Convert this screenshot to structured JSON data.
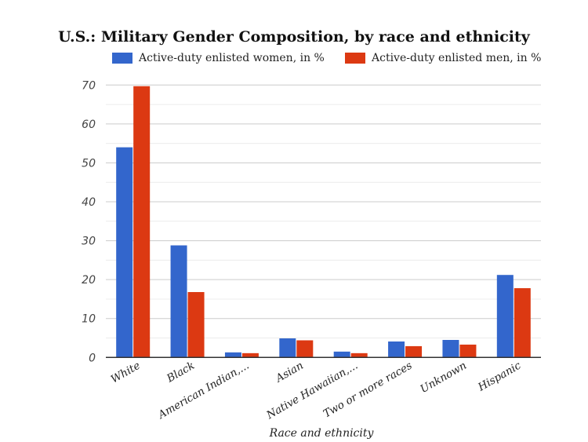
{
  "chart_data": {
    "type": "bar",
    "title": "U.S.: Military Gender Composition, by race and ethnicity",
    "xlabel": "Race and ethnicity",
    "ylabel": "",
    "ylim": [
      0,
      70
    ],
    "yticks": [
      0,
      10,
      20,
      30,
      40,
      50,
      60,
      70
    ],
    "grid": true,
    "legend_position": "top",
    "categories": [
      "White",
      "Black",
      "American Indian,...",
      "Asian",
      "Native Hawaiian,...",
      "Two or more races",
      "Unknown",
      "Hispanic"
    ],
    "series": [
      {
        "name": "Active-duty enlisted women, in %",
        "color": "#3366cc",
        "values": [
          54.0,
          28.8,
          1.3,
          4.9,
          1.5,
          4.1,
          4.5,
          21.2
        ]
      },
      {
        "name": "Active-duty enlisted men, in %",
        "color": "#dc3912",
        "values": [
          69.7,
          16.8,
          1.1,
          4.4,
          1.1,
          2.9,
          3.3,
          17.8
        ]
      }
    ]
  }
}
